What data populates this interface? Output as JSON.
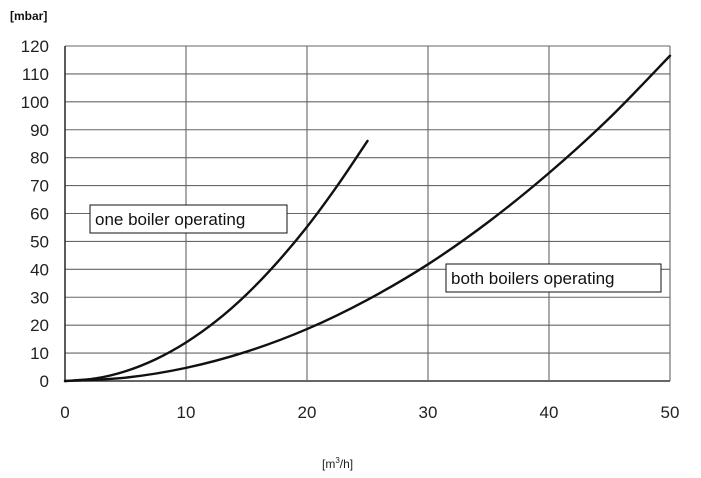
{
  "chart_data": {
    "type": "line",
    "title": "",
    "ylabel": "[mbar]",
    "xlabel_base": "[m",
    "xlabel_sup": "3",
    "xlabel_end": "/h]",
    "xlim": [
      0,
      50
    ],
    "ylim": [
      0,
      120
    ],
    "x_ticks": [
      "0",
      "10",
      "20",
      "30",
      "40",
      "50"
    ],
    "y_ticks": [
      "0",
      "10",
      "20",
      "30",
      "40",
      "50",
      "60",
      "70",
      "80",
      "90",
      "100",
      "110",
      "120"
    ],
    "grid": true,
    "series": [
      {
        "name": "one boiler operating",
        "x": [
          0,
          2.5,
          5,
          7.5,
          10,
          12.5,
          15,
          17.5,
          20,
          22.5,
          25
        ],
        "y": [
          0,
          0.9,
          3.5,
          7.8,
          13.8,
          21.5,
          31,
          42.3,
          55.2,
          69.9,
          86
        ]
      },
      {
        "name": "both boilers operating",
        "x": [
          0,
          5,
          10,
          15,
          20,
          25,
          30,
          35,
          40,
          45,
          50
        ],
        "y": [
          0,
          1.2,
          4.7,
          10.5,
          18.6,
          29.1,
          41.8,
          57,
          74.5,
          94.2,
          116.5
        ]
      }
    ]
  }
}
